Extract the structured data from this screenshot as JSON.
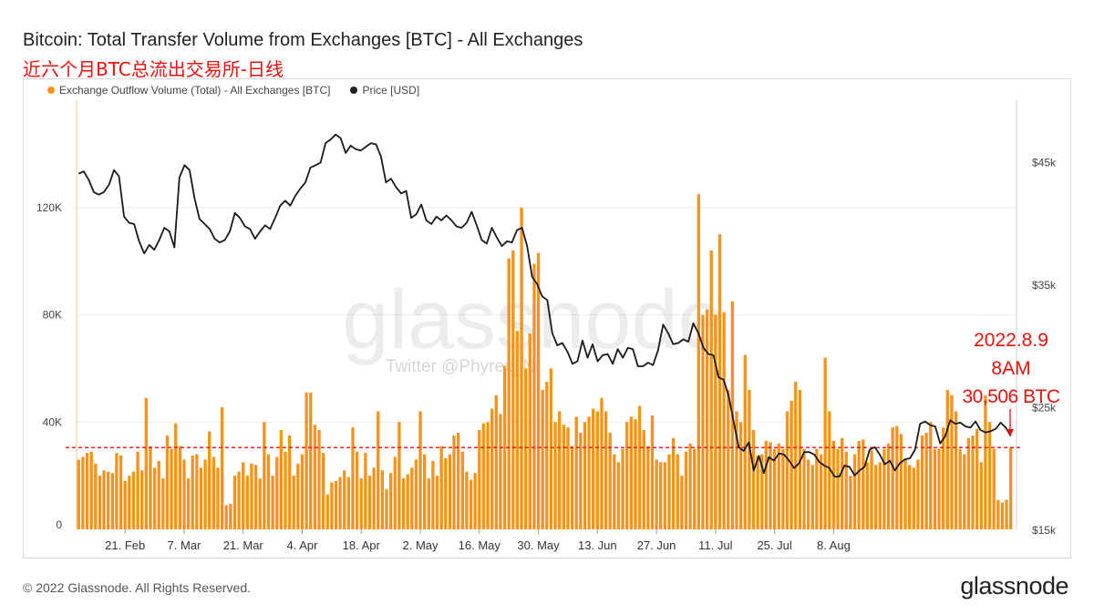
{
  "header": {
    "title": "Bitcoin: Total Transfer Volume from Exchanges [BTC] - All Exchanges",
    "subtitle": "近六个月BTC总流出交易所-日线"
  },
  "watermark": {
    "brand": "glassnode",
    "twitter": "Twitter @Phyrex_Ni"
  },
  "annotation": {
    "date": "2022.8.9",
    "time": "8AM",
    "value": "30,506 BTC"
  },
  "footer": {
    "copyright": "© 2022 Glassnode. All Rights Reserved.",
    "logo": "glassnode"
  },
  "colors": {
    "bars": "#f7931a",
    "price_line": "#1a1a1a",
    "reference_line": "#e8120c",
    "annotation": "#e8120c"
  },
  "chart_data": {
    "type": "bar",
    "legend": [
      {
        "label": "Exchange Outflow Volume (Total) - All Exchanges [BTC]",
        "color": "#f7931a"
      },
      {
        "label": "Price [USD]",
        "color": "#222222"
      }
    ],
    "legend_position": "top-left",
    "grid": true,
    "x_ticks": [
      "21. Feb",
      "7. Mar",
      "21. Mar",
      "4. Apr",
      "18. Apr",
      "2. May",
      "16. May",
      "30. May",
      "13. Jun",
      "27. Jun",
      "11. Jul",
      "25. Jul",
      "8. Aug"
    ],
    "x_start_date": "2022-02-10",
    "y_left": {
      "ticks": [
        "0",
        "40K",
        "80K",
        "120K"
      ],
      "tick_values": [
        0,
        40000,
        80000,
        120000
      ],
      "range": [
        0,
        160000
      ]
    },
    "y_right": {
      "ticks": [
        "$15k",
        "$25k",
        "$35k",
        "$45k"
      ],
      "tick_values": [
        15000,
        25000,
        35000,
        45000
      ],
      "range": [
        15000,
        50000
      ]
    },
    "reference_value": 30506,
    "series": [
      {
        "name": "Exchange Outflow Volume (Total) - All Exchanges [BTC]",
        "type": "bar",
        "values": [
          26000,
          27000,
          28500,
          29000,
          24500,
          20000,
          22000,
          21500,
          21000,
          28500,
          27500,
          18000,
          20000,
          21500,
          29000,
          22000,
          49000,
          31000,
          23000,
          25500,
          19000,
          35000,
          30000,
          39500,
          31000,
          26000,
          19000,
          27500,
          28000,
          23000,
          26000,
          36500,
          27000,
          23000,
          45500,
          9000,
          9500,
          20000,
          21500,
          25000,
          20000,
          24500,
          24000,
          19000,
          40000,
          28000,
          20000,
          27000,
          37000,
          29000,
          35000,
          20000,
          24500,
          28000,
          51000,
          51000,
          39000,
          37000,
          28500,
          13000,
          17500,
          18000,
          19500,
          22000,
          19500,
          38000,
          29000,
          19000,
          28500,
          20000,
          23000,
          44000,
          22000,
          15000,
          21000,
          27000,
          40000,
          19000,
          20500,
          23000,
          26000,
          44000,
          28000,
          19000,
          25500,
          20000,
          31000,
          26500,
          28000,
          35000,
          36000,
          29000,
          21500,
          18500,
          21000,
          37000,
          39500,
          40000,
          45000,
          50000,
          43000,
          61000,
          101000,
          104000,
          74000,
          120000,
          60000,
          73000,
          99000,
          103000,
          52000,
          55000,
          60000,
          40000,
          44000,
          39000,
          38000,
          31000,
          42000,
          36000,
          40000,
          42000,
          45000,
          44000,
          49000,
          44000,
          36000,
          28000,
          25000,
          30000,
          40000,
          42000,
          41000,
          46000,
          37000,
          31000,
          42500,
          26000,
          25000,
          25000,
          28000,
          34000,
          28000,
          20000,
          29000,
          32000,
          30000,
          125000,
          80000,
          82000,
          104000,
          80000,
          110000,
          81000,
          52000,
          85000,
          44000,
          40000,
          65000,
          52000,
          37000,
          27500,
          28000,
          33000,
          32500,
          30000,
          32000,
          30000,
          44000,
          48000,
          55000,
          52000,
          30000,
          26000,
          24000,
          30000,
          28000,
          64000,
          44000,
          33000,
          30000,
          34000,
          29000,
          20000,
          28000,
          33000,
          33500,
          25000,
          29500,
          24000,
          25000,
          30000,
          32000,
          38000,
          38500,
          35500,
          26500,
          24000,
          23000,
          26000,
          35000,
          36000,
          40000,
          30000,
          30000,
          38000,
          52000,
          50000,
          44000,
          30000,
          28000,
          34000,
          35000,
          37500,
          25000,
          50000,
          40000,
          30000,
          11000,
          10000,
          11000,
          30506
        ],
        "color": "#f7931a"
      },
      {
        "name": "Price [USD]",
        "type": "line",
        "axis": "right",
        "values": [
          44000,
          44200,
          43500,
          42500,
          42300,
          42500,
          43100,
          44300,
          43800,
          40500,
          40000,
          39900,
          38500,
          37500,
          38200,
          37800,
          38600,
          39600,
          39300,
          38000,
          43700,
          44700,
          44300,
          42000,
          40300,
          39900,
          39500,
          38700,
          38400,
          38600,
          39300,
          40800,
          40400,
          39700,
          39500,
          38700,
          39300,
          39800,
          39500,
          40400,
          41400,
          41800,
          41400,
          42200,
          42800,
          43300,
          44500,
          44700,
          44900,
          46500,
          46800,
          47200,
          46900,
          45700,
          46300,
          46000,
          45900,
          46200,
          46500,
          46400,
          45400,
          43300,
          43600,
          42900,
          42400,
          42600,
          40400,
          40700,
          41500,
          40200,
          39900,
          40500,
          40200,
          40600,
          40200,
          39700,
          39600,
          40000,
          40900,
          39800,
          38600,
          38300,
          39600,
          38800,
          38100,
          38500,
          38400,
          39400,
          39600,
          38100,
          35600,
          35000,
          34000,
          33700,
          31000,
          30000,
          30200,
          29500,
          28500,
          28700,
          30400,
          29000,
          30100,
          28700,
          29200,
          29300,
          28500,
          29700,
          29000,
          29800,
          29700,
          28300,
          28300,
          28600,
          28400,
          29600,
          31700,
          31000,
          30100,
          30200,
          30500,
          30300,
          31800,
          31000,
          29800,
          29300,
          29200,
          27400,
          27200,
          25900,
          23800,
          21700,
          21400,
          22100,
          19800,
          21000,
          19600,
          20900,
          20600,
          21200,
          21100,
          20600,
          20000,
          20400,
          21300,
          21300,
          21100,
          20500,
          20200,
          20000,
          19300,
          19300,
          20200,
          20100,
          19400,
          19800,
          20100,
          21500,
          21700,
          21100,
          20300,
          20600,
          19800,
          20400,
          20700,
          20800,
          21500,
          23600,
          23800,
          23500,
          23400,
          22000,
          22600,
          23900,
          23600,
          23700,
          23400,
          23300,
          23800,
          23100,
          22900,
          23000,
          23200,
          23700,
          23300,
          22600
        ],
        "color": "#1a1a1a"
      }
    ]
  }
}
